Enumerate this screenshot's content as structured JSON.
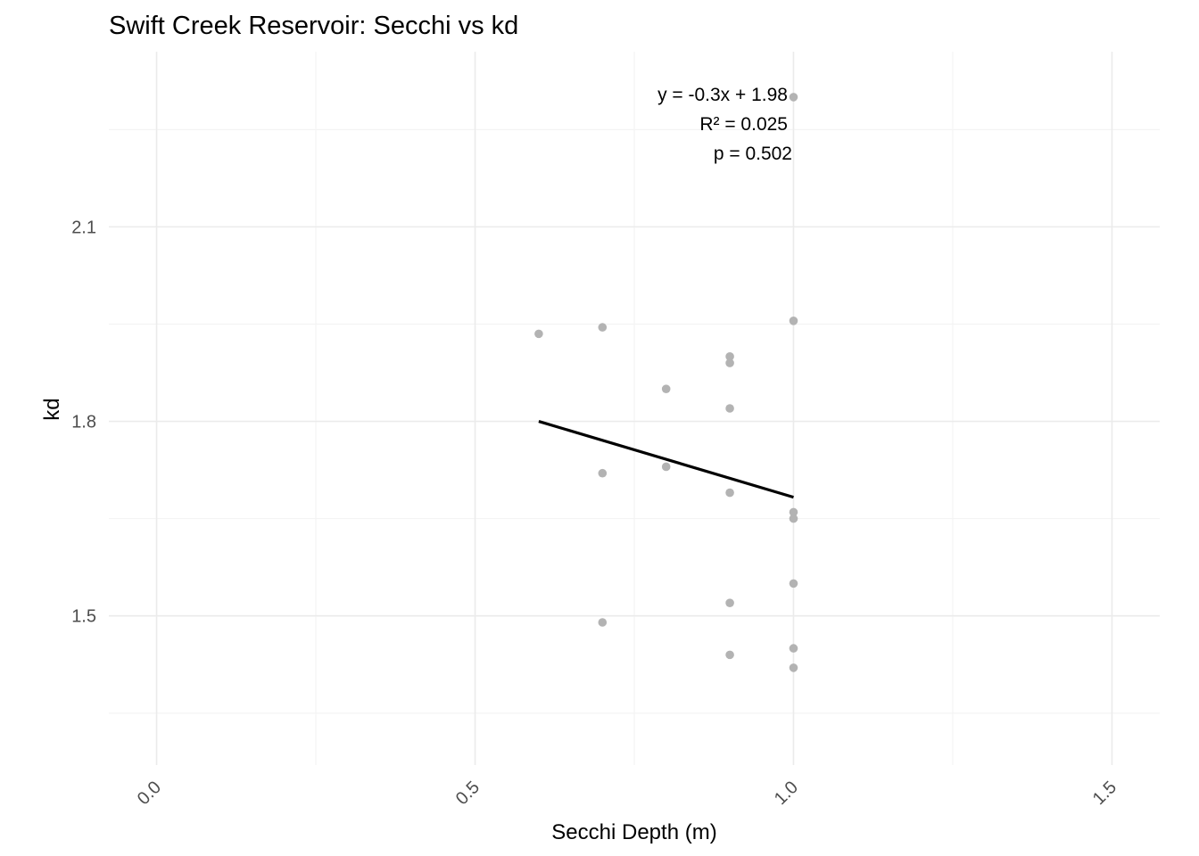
{
  "chart_data": {
    "type": "scatter",
    "title": "Swift Creek Reservoir: Secchi vs kd",
    "xlabel": "Secchi Depth (m)",
    "ylabel": "kd",
    "xlim": [
      -0.075,
      1.575
    ],
    "ylim": [
      1.27,
      2.37
    ],
    "x_ticks": [
      0.0,
      0.5,
      1.0,
      1.5
    ],
    "x_tick_labels": [
      "0.0",
      "0.5",
      "1.0",
      "1.5"
    ],
    "y_ticks": [
      1.5,
      1.8,
      2.1
    ],
    "y_tick_labels": [
      "1.5",
      "1.8",
      "2.1"
    ],
    "x_minor_ticks": [
      0.25,
      0.75,
      1.25
    ],
    "y_minor_ticks": [
      1.35,
      1.65,
      1.95,
      2.25
    ],
    "grid": true,
    "points": [
      {
        "x": 0.6,
        "y": 1.935
      },
      {
        "x": 0.7,
        "y": 1.945
      },
      {
        "x": 0.7,
        "y": 1.72
      },
      {
        "x": 0.7,
        "y": 1.49
      },
      {
        "x": 0.8,
        "y": 1.85
      },
      {
        "x": 0.8,
        "y": 1.73
      },
      {
        "x": 0.9,
        "y": 1.9
      },
      {
        "x": 0.9,
        "y": 1.89
      },
      {
        "x": 0.9,
        "y": 1.82
      },
      {
        "x": 0.9,
        "y": 1.69
      },
      {
        "x": 0.9,
        "y": 1.52
      },
      {
        "x": 0.9,
        "y": 1.44
      },
      {
        "x": 1.0,
        "y": 2.3
      },
      {
        "x": 1.0,
        "y": 1.955
      },
      {
        "x": 1.0,
        "y": 1.66
      },
      {
        "x": 1.0,
        "y": 1.65
      },
      {
        "x": 1.0,
        "y": 1.55
      },
      {
        "x": 1.0,
        "y": 1.45
      },
      {
        "x": 1.0,
        "y": 1.42
      }
    ],
    "point_color": "#b3b3b3",
    "fit_line": {
      "x": [
        0.6,
        1.0
      ],
      "y": [
        1.8,
        1.683
      ],
      "color": "#000000"
    },
    "annotations": [
      "y = -0.3x + 1.98",
      "R² = 0.025",
      "p = 0.502"
    ]
  }
}
